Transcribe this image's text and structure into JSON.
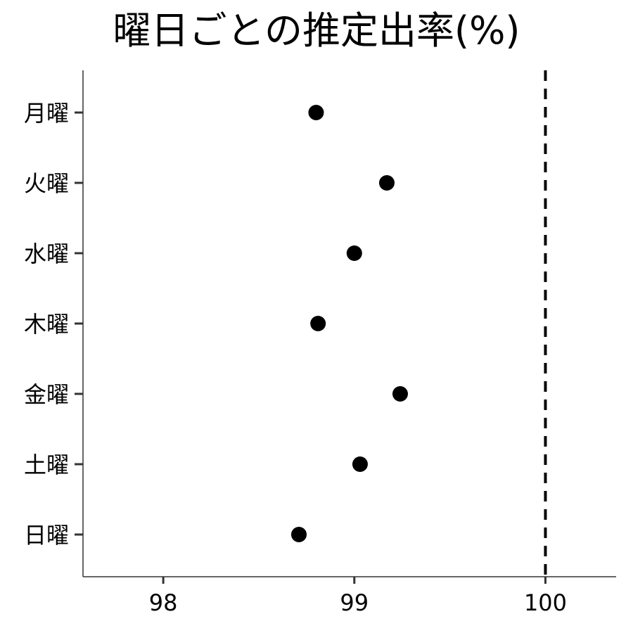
{
  "chart_data": {
    "type": "scatter",
    "title": "曜日ごとの推定出率(%)",
    "xlabel": "",
    "ylabel": "",
    "xlim": [
      97.58,
      100.37
    ],
    "x_ticks": [
      "98",
      "99",
      "100"
    ],
    "categories": [
      "月曜",
      "火曜",
      "水曜",
      "木曜",
      "金曜",
      "土曜",
      "日曜"
    ],
    "values": [
      98.8,
      99.17,
      99.0,
      98.81,
      99.24,
      99.03,
      98.71
    ],
    "reference_line": {
      "x": 100,
      "style": "dashed"
    },
    "grid": false,
    "legend": "none",
    "point_color": "#000000"
  }
}
